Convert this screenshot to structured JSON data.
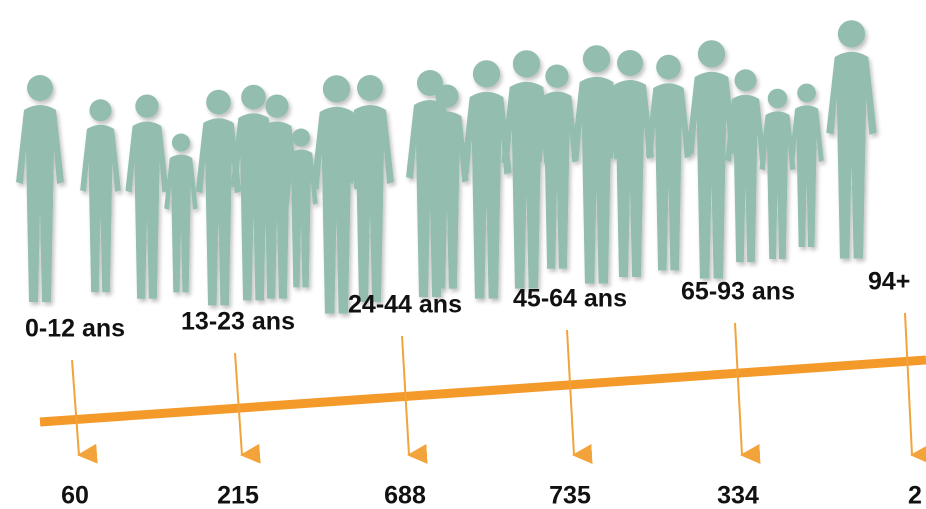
{
  "groups": [
    {
      "label": "0-12 ans",
      "count": "60"
    },
    {
      "label": "13-23 ans",
      "count": "215"
    },
    {
      "label": "24-44 ans",
      "count": "688"
    },
    {
      "label": "45-64 ans",
      "count": "735"
    },
    {
      "label": "65-93 ans",
      "count": "334"
    },
    {
      "label": "94+",
      "count": "2"
    }
  ]
}
